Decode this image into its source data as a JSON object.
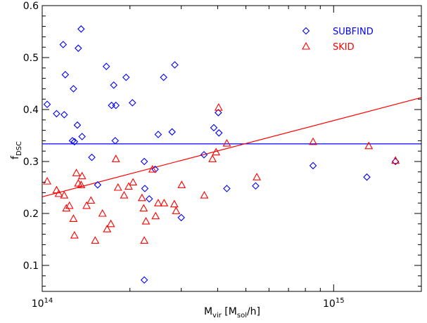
{
  "chart_data": {
    "type": "scatter",
    "title": "",
    "xlabel": {
      "main": "M",
      "sub": "vir",
      "rest": " [M",
      "sub2": "sol",
      "rest2": "/h]"
    },
    "ylabel": {
      "main": "f",
      "sub": "DSC"
    },
    "xscale": "log",
    "xlim": [
      100000000000000.0,
      2000000000000000.0
    ],
    "ylim": [
      0.05,
      0.6
    ],
    "grid": false,
    "legend_position": "top-right",
    "x_ticks": [
      {
        "value": 100000000000000.0,
        "base": "10",
        "exp": "14"
      },
      {
        "value": 1000000000000000.0,
        "base": "10",
        "exp": "15"
      }
    ],
    "y_ticks": [
      {
        "value": 0.1,
        "label": "0.1"
      },
      {
        "value": 0.2,
        "label": "0.2"
      },
      {
        "value": 0.3,
        "label": "0.3"
      },
      {
        "value": 0.4,
        "label": "0.4"
      },
      {
        "value": 0.5,
        "label": "0.5"
      },
      {
        "value": 0.6,
        "label": "0.6"
      }
    ],
    "series": [
      {
        "name": "SUBFIND",
        "color": "#0000ff",
        "marker": "diamond",
        "points": [
          [
            104000000000000.0,
            0.41
          ],
          [
            112000000000000.0,
            0.392
          ],
          [
            118000000000000.0,
            0.525
          ],
          [
            120000000000000.0,
            0.467
          ],
          [
            119000000000000.0,
            0.39
          ],
          [
            128000000000000.0,
            0.44
          ],
          [
            133000000000000.0,
            0.518
          ],
          [
            136000000000000.0,
            0.555
          ],
          [
            132000000000000.0,
            0.37
          ],
          [
            127000000000000.0,
            0.34
          ],
          [
            129000000000000.0,
            0.338
          ],
          [
            137000000000000.0,
            0.348
          ],
          [
            148000000000000.0,
            0.308
          ],
          [
            155000000000000.0,
            0.255
          ],
          [
            166000000000000.0,
            0.483
          ],
          [
            173000000000000.0,
            0.408
          ],
          [
            179000000000000.0,
            0.408
          ],
          [
            176000000000000.0,
            0.447
          ],
          [
            178000000000000.0,
            0.34
          ],
          [
            194000000000000.0,
            0.462
          ],
          [
            204000000000000.0,
            0.413
          ],
          [
            224000000000000.0,
            0.3
          ],
          [
            225000000000000.0,
            0.248
          ],
          [
            233000000000000.0,
            0.228
          ],
          [
            244000000000000.0,
            0.285
          ],
          [
            250000000000000.0,
            0.352
          ],
          [
            261000000000000.0,
            0.462
          ],
          [
            279000000000000.0,
            0.357
          ],
          [
            285000000000000.0,
            0.486
          ],
          [
            300000000000000.0,
            0.192
          ],
          [
            224000000000000.0,
            0.072
          ],
          [
            359000000000000.0,
            0.313
          ],
          [
            388000000000000.0,
            0.365
          ],
          [
            402000000000000.0,
            0.394
          ],
          [
            404000000000000.0,
            0.355
          ],
          [
            430000000000000.0,
            0.248
          ],
          [
            540000000000000.0,
            0.253
          ],
          [
            850000000000000.0,
            0.292
          ],
          [
            1300000000000000.0,
            0.27
          ],
          [
            1630000000000000.0,
            0.3
          ]
        ]
      },
      {
        "name": "SKID",
        "color": "#ff0000",
        "marker": "triangle",
        "points": [
          [
            104000000000000.0,
            0.262
          ],
          [
            112000000000000.0,
            0.245
          ],
          [
            114000000000000.0,
            0.238
          ],
          [
            119000000000000.0,
            0.235
          ],
          [
            121000000000000.0,
            0.21
          ],
          [
            124000000000000.0,
            0.215
          ],
          [
            128000000000000.0,
            0.19
          ],
          [
            129000000000000.0,
            0.158
          ],
          [
            131000000000000.0,
            0.278
          ],
          [
            133000000000000.0,
            0.258
          ],
          [
            136000000000000.0,
            0.255
          ],
          [
            137000000000000.0,
            0.272
          ],
          [
            142000000000000.0,
            0.215
          ],
          [
            147000000000000.0,
            0.225
          ],
          [
            152000000000000.0,
            0.148
          ],
          [
            161000000000000.0,
            0.2
          ],
          [
            167000000000000.0,
            0.17
          ],
          [
            172000000000000.0,
            0.18
          ],
          [
            179000000000000.0,
            0.305
          ],
          [
            182000000000000.0,
            0.25
          ],
          [
            191000000000000.0,
            0.235
          ],
          [
            198000000000000.0,
            0.252
          ],
          [
            205000000000000.0,
            0.26
          ],
          [
            220000000000000.0,
            0.23
          ],
          [
            223000000000000.0,
            0.21
          ],
          [
            224000000000000.0,
            0.148
          ],
          [
            227000000000000.0,
            0.185
          ],
          [
            239000000000000.0,
            0.285
          ],
          [
            245000000000000.0,
            0.195
          ],
          [
            250000000000000.0,
            0.22
          ],
          [
            262000000000000.0,
            0.22
          ],
          [
            284000000000000.0,
            0.218
          ],
          [
            288000000000000.0,
            0.205
          ],
          [
            301000000000000.0,
            0.255
          ],
          [
            360000000000000.0,
            0.235
          ],
          [
            384000000000000.0,
            0.305
          ],
          [
            395000000000000.0,
            0.318
          ],
          [
            403000000000000.0,
            0.404
          ],
          [
            430000000000000.0,
            0.335
          ],
          [
            545000000000000.0,
            0.27
          ],
          [
            850000000000000.0,
            0.338
          ],
          [
            1320000000000000.0,
            0.33
          ],
          [
            1630000000000000.0,
            0.302
          ]
        ]
      }
    ],
    "reference_lines": [
      {
        "series": "SUBFIND",
        "color": "#0000ff",
        "x": [
          100000000000000.0,
          2000000000000000.0
        ],
        "y": [
          0.334,
          0.334
        ]
      },
      {
        "series": "SKID",
        "color": "#ff0000",
        "x": [
          100000000000000.0,
          2000000000000000.0
        ],
        "y": [
          0.232,
          0.423
        ]
      }
    ]
  }
}
